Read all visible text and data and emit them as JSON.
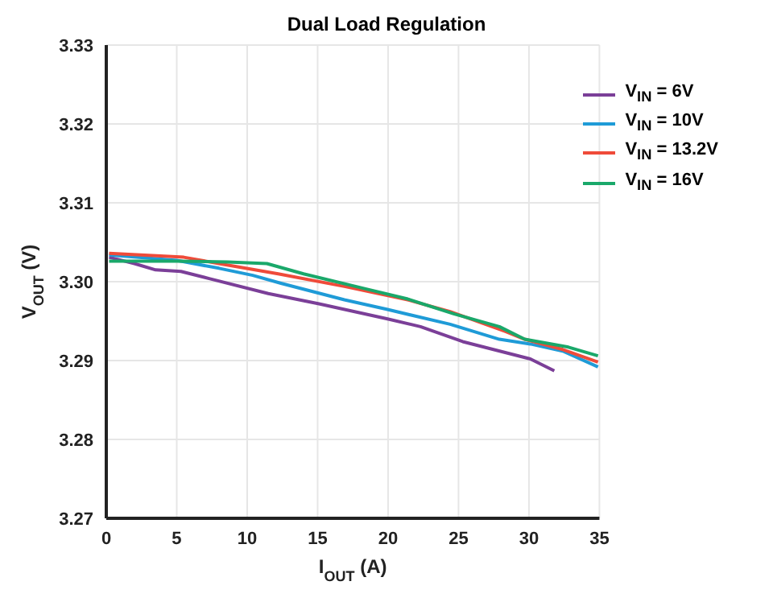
{
  "chart_data": {
    "type": "line",
    "title": "Dual Load Regulation",
    "xlabel": "I$_{OUT}$ (A)",
    "ylabel": "V$_{OUT}$ (V)",
    "xlim": [
      0,
      35
    ],
    "xticks": [
      0,
      5,
      10,
      15,
      20,
      25,
      30,
      35
    ],
    "ylim": [
      3.27,
      3.33
    ],
    "yticks": [
      {
        "value": 3.27,
        "label": "3.27"
      },
      {
        "value": 3.28,
        "label": "3.28"
      },
      {
        "value": 3.29,
        "label": "3.29"
      },
      {
        "value": 3.3,
        "label": "3.30"
      },
      {
        "value": 3.31,
        "label": "3.31"
      },
      {
        "value": 3.32,
        "label": "3.32"
      },
      {
        "value": 3.33,
        "label": "3.33"
      }
    ],
    "grid": true,
    "legend": "top right",
    "marker": "none",
    "line_style": "solid",
    "series": [
      {
        "name": "V$_{IN}$ = 6V",
        "color": "#7b3f98",
        "x": [
          0.2,
          2.0,
          3.5,
          5.3,
          7.3,
          11.5,
          15.1,
          19.9,
          22.3,
          25.3,
          30.1,
          31.8
        ],
        "values": [
          3.3031,
          3.3023,
          3.3015,
          3.3013,
          3.3004,
          3.2985,
          3.2972,
          3.2953,
          3.2943,
          3.2924,
          3.2902,
          3.2887
        ]
      },
      {
        "name": "V$_{IN}$ = 10V",
        "color": "#1f9bd7",
        "x": [
          0.2,
          5.0,
          8.0,
          10.4,
          12.4,
          16.9,
          19.9,
          24.4,
          27.9,
          30.1,
          32.4,
          34.9
        ],
        "values": [
          3.3034,
          3.3027,
          3.3017,
          3.3008,
          3.2998,
          3.2977,
          3.2965,
          3.2946,
          3.2927,
          3.2921,
          3.2912,
          3.2892
        ]
      },
      {
        "name": "V$_{IN}$ = 13.2V",
        "color": "#ef4b3a",
        "x": [
          0.2,
          5.5,
          8.0,
          12.2,
          16.9,
          21.4,
          24.4,
          28.3,
          29.7,
          32.4,
          34.9
        ],
        "values": [
          3.3036,
          3.3031,
          3.3023,
          3.301,
          3.2994,
          3.2977,
          3.2962,
          3.2937,
          3.2927,
          3.2914,
          3.2898
        ]
      },
      {
        "name": "V$_{IN}$ = 16V",
        "color": "#1aa86a",
        "x": [
          0.2,
          5.0,
          8.6,
          11.4,
          14.0,
          18.4,
          21.4,
          24.7,
          27.9,
          29.7,
          32.8,
          34.9
        ],
        "values": [
          3.3026,
          3.3026,
          3.3025,
          3.3023,
          3.301,
          3.2991,
          3.2978,
          3.2959,
          3.2943,
          3.2927,
          3.2917,
          3.2906
        ]
      }
    ]
  }
}
